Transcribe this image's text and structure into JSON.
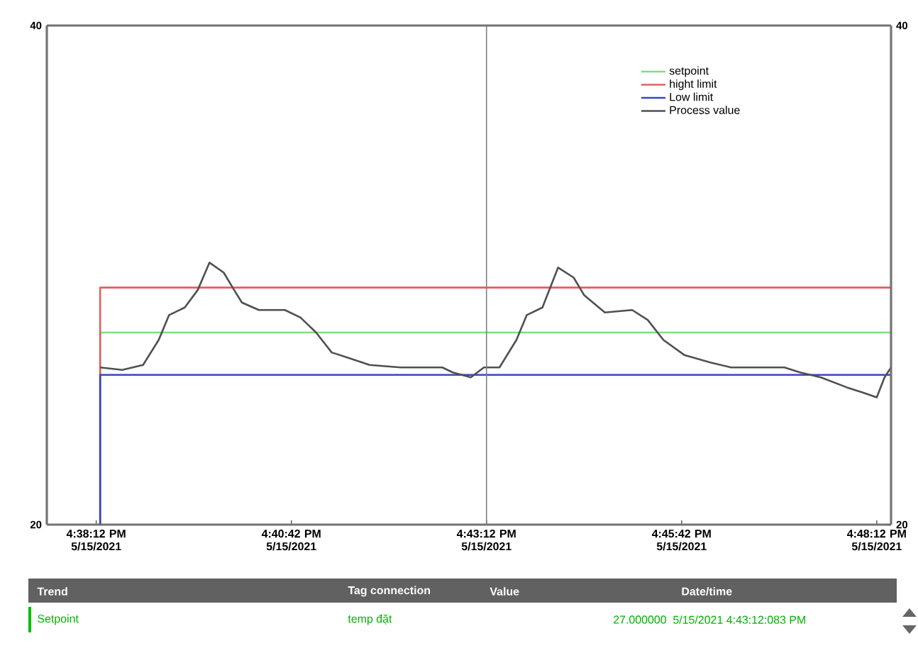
{
  "chart_data": {
    "type": "line",
    "series": [
      {
        "name": "setpoint",
        "color": "#7fdf7f",
        "x": [
          "2021-05-15T16:38:15",
          "2021-05-15T16:38:15",
          "2021-05-15T16:48:23"
        ],
        "values": [
          20,
          27.7,
          27.7
        ]
      },
      {
        "name": "hight limit",
        "color": "#e06060",
        "x": [
          "2021-05-15T16:38:15",
          "2021-05-15T16:38:15",
          "2021-05-15T16:48:23"
        ],
        "values": [
          20,
          29.5,
          29.5
        ]
      },
      {
        "name": "Low limit",
        "color": "#3848c0",
        "x": [
          "2021-05-15T16:38:15",
          "2021-05-15T16:38:15",
          "2021-05-15T16:48:23"
        ],
        "values": [
          20,
          26.0,
          26.0
        ]
      },
      {
        "name": "Process value",
        "color": "#505050",
        "x": [
          "2021-05-15T16:38:15",
          "2021-05-15T16:38:32",
          "2021-05-15T16:38:48",
          "2021-05-15T16:39:00",
          "2021-05-15T16:39:08",
          "2021-05-15T16:39:20",
          "2021-05-15T16:39:30",
          "2021-05-15T16:39:39",
          "2021-05-15T16:39:50",
          "2021-05-15T16:39:58",
          "2021-05-15T16:40:04",
          "2021-05-15T16:40:17",
          "2021-05-15T16:40:37",
          "2021-05-15T16:40:49",
          "2021-05-15T16:41:01",
          "2021-05-15T16:41:13",
          "2021-05-15T16:41:25",
          "2021-05-15T16:41:42",
          "2021-05-15T16:42:06",
          "2021-05-15T16:42:38",
          "2021-05-15T16:42:46",
          "2021-05-15T16:43:00",
          "2021-05-15T16:43:10",
          "2021-05-15T16:43:22",
          "2021-05-15T16:43:35",
          "2021-05-15T16:43:43",
          "2021-05-15T16:43:55",
          "2021-05-15T16:44:07",
          "2021-05-15T16:44:19",
          "2021-05-15T16:44:27",
          "2021-05-15T16:44:43",
          "2021-05-15T16:45:04",
          "2021-05-15T16:45:16",
          "2021-05-15T16:45:28",
          "2021-05-15T16:45:44",
          "2021-05-15T16:46:04",
          "2021-05-15T16:46:20",
          "2021-05-15T16:47:01",
          "2021-05-15T16:47:13",
          "2021-05-15T16:47:29",
          "2021-05-15T16:47:49",
          "2021-05-15T16:48:01",
          "2021-05-15T16:48:12",
          "2021-05-15T16:48:18",
          "2021-05-15T16:48:23"
        ],
        "values": [
          26.3,
          26.2,
          26.4,
          27.4,
          28.4,
          28.7,
          29.4,
          30.5,
          30.1,
          29.4,
          28.9,
          28.6,
          28.6,
          28.3,
          27.7,
          26.9,
          26.7,
          26.4,
          26.3,
          26.3,
          26.1,
          25.9,
          26.3,
          26.3,
          27.4,
          28.4,
          28.7,
          30.3,
          29.9,
          29.2,
          28.5,
          28.6,
          28.2,
          27.4,
          26.8,
          26.5,
          26.3,
          26.3,
          26.1,
          25.9,
          25.5,
          25.3,
          25.1,
          25.9,
          26.3
        ]
      }
    ],
    "xlim": [
      "2021-05-15T16:37:34",
      "2021-05-15T16:48:23"
    ],
    "xticks": [
      {
        "value": "2021-05-15T16:38:12",
        "label": "4:38:12 PM 5/15/2021"
      },
      {
        "value": "2021-05-15T16:40:42",
        "label": "4:40:42 PM 5/15/2021"
      },
      {
        "value": "2021-05-15T16:43:12",
        "label": "4:43:12 PM 5/15/2021"
      },
      {
        "value": "2021-05-15T16:45:42",
        "label": "4:45:42 PM 5/15/2021"
      },
      {
        "value": "2021-05-15T16:48:12",
        "label": "4:48:12 PM 5/15/2021"
      }
    ],
    "ylim": [
      20,
      40
    ],
    "yticks": [
      20,
      40
    ],
    "y2lim": [
      20,
      40
    ],
    "y2ticks": [
      20,
      40
    ],
    "ref_lines": [
      {
        "axis": "x",
        "value": "2021-05-15T16:43:12",
        "color": "#808080"
      }
    ],
    "legend": "top right",
    "marker": "none",
    "annotations": [
      "Trend",
      "Tag connection",
      "Value",
      "Date/time",
      "Setpoint",
      "temp đặt",
      "27.000000",
      "5/15/2021 4:43:12:083 PM"
    ]
  }
}
